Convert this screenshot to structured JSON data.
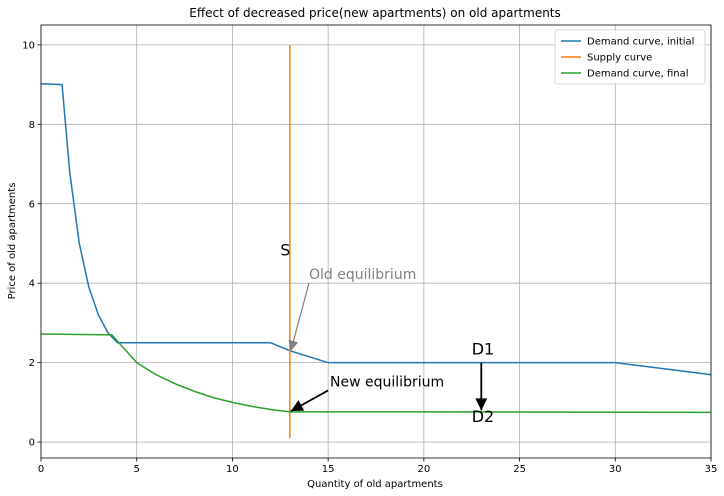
{
  "chart_data": {
    "type": "line",
    "title": "Effect of decreased price(new apartments) on old apartments",
    "xlabel": "Quantity of old apartments",
    "ylabel": "Price of old apartments",
    "xlim": [
      0,
      35
    ],
    "ylim": [
      -0.4,
      10.5
    ],
    "xticks": [
      0,
      5,
      10,
      15,
      20,
      25,
      30,
      35
    ],
    "yticks": [
      0,
      2,
      4,
      6,
      8,
      10
    ],
    "grid": true,
    "legend_position": "top-right",
    "series": [
      {
        "name": "Demand curve, initial",
        "color": "#1f77b4",
        "x": [
          0,
          1.1,
          1.5,
          2,
          2.5,
          3,
          3.5,
          4,
          12,
          13,
          14,
          15,
          30,
          35
        ],
        "y": [
          9.02,
          9.0,
          6.8,
          5.0,
          3.9,
          3.2,
          2.75,
          2.5,
          2.5,
          2.3,
          2.15,
          2.0,
          2.0,
          1.7
        ]
      },
      {
        "name": "Supply curve",
        "color": "#ff7f0e",
        "x": [
          13,
          13
        ],
        "y": [
          0.1,
          10.0
        ]
      },
      {
        "name": "Demand curve, final",
        "color": "#2ca02c",
        "x": [
          0,
          3.7,
          5,
          6,
          7,
          8,
          9,
          10,
          11,
          12,
          13,
          20,
          35
        ],
        "y": [
          2.72,
          2.7,
          2.0,
          1.7,
          1.47,
          1.28,
          1.12,
          1.0,
          0.9,
          0.82,
          0.76,
          0.76,
          0.75
        ]
      }
    ],
    "annotations": [
      {
        "id": "supply-label",
        "text": "S",
        "x": 12.5,
        "y": 4.7,
        "color": "#000000",
        "size": "big"
      },
      {
        "id": "old-eq",
        "text": "Old equilibrium",
        "x": 14.0,
        "y": 4.1,
        "color": "#808080",
        "size": "normal",
        "arrow": {
          "from": [
            14.0,
            4.0
          ],
          "to": [
            13.05,
            2.3
          ]
        }
      },
      {
        "id": "new-eq",
        "text": "New equilibrium",
        "x": 15.1,
        "y": 1.4,
        "color": "#000000",
        "size": "normal",
        "arrow": {
          "from": [
            15.0,
            1.3
          ],
          "to": [
            13.05,
            0.78
          ]
        }
      },
      {
        "id": "d1",
        "text": "D1",
        "x": 22.5,
        "y": 2.2,
        "color": "#000000",
        "size": "big"
      },
      {
        "id": "d2",
        "text": "D2",
        "x": 22.5,
        "y": 0.5,
        "color": "#000000",
        "size": "big",
        "arrow": {
          "from": [
            23.0,
            2.0
          ],
          "to": [
            23.0,
            0.8
          ]
        }
      }
    ]
  }
}
